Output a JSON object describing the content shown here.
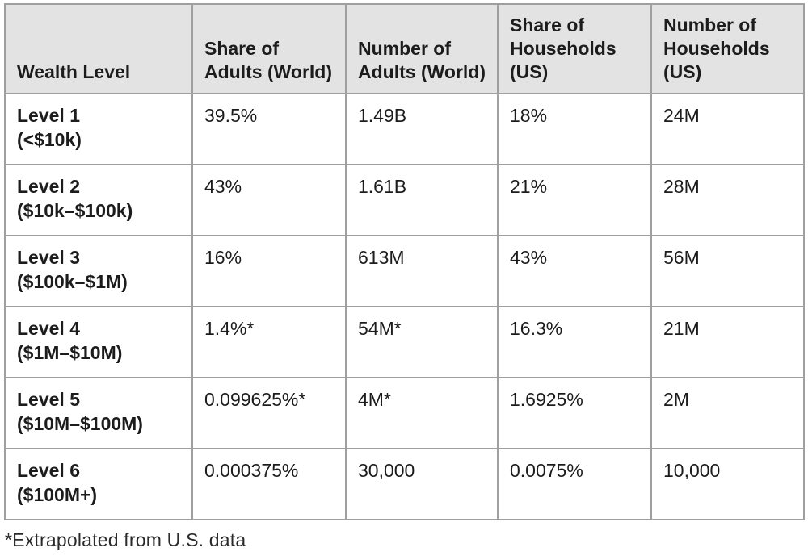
{
  "chart_data": {
    "type": "table",
    "columns": [
      "Wealth Level",
      "Share of Adults (World)",
      "Number of Adults (World)",
      "Share of Households (US)",
      "Number of Households (US)"
    ],
    "rows": [
      {
        "level": "Level 1",
        "range": "(<$10k)",
        "share_adults_world": "39.5%",
        "num_adults_world": "1.49B",
        "share_households_us": "18%",
        "num_households_us": "24M"
      },
      {
        "level": "Level 2",
        "range": "($10k–$100k)",
        "share_adults_world": "43%",
        "num_adults_world": "1.61B",
        "share_households_us": "21%",
        "num_households_us": "28M"
      },
      {
        "level": "Level 3",
        "range": "($100k–$1M)",
        "share_adults_world": "16%",
        "num_adults_world": "613M",
        "share_households_us": "43%",
        "num_households_us": "56M"
      },
      {
        "level": "Level 4",
        "range": "($1M–$10M)",
        "share_adults_world": "1.4%*",
        "num_adults_world": "54M*",
        "share_households_us": "16.3%",
        "num_households_us": "21M"
      },
      {
        "level": "Level 5",
        "range": "($10M–$100M)",
        "share_adults_world": "0.099625%*",
        "num_adults_world": "4M*",
        "share_households_us": "1.6925%",
        "num_households_us": "2M"
      },
      {
        "level": "Level 6",
        "range": "($100M+)",
        "share_adults_world": "0.000375%",
        "num_adults_world": "30,000",
        "share_households_us": "0.0075%",
        "num_households_us": "10,000"
      }
    ],
    "footnote": "*Extrapolated from U.S. data",
    "layout": {
      "grid": "on",
      "header_background": "#e3e3e3",
      "border_color": "#9f9f9f",
      "text_color": "#1c1c1c"
    }
  }
}
